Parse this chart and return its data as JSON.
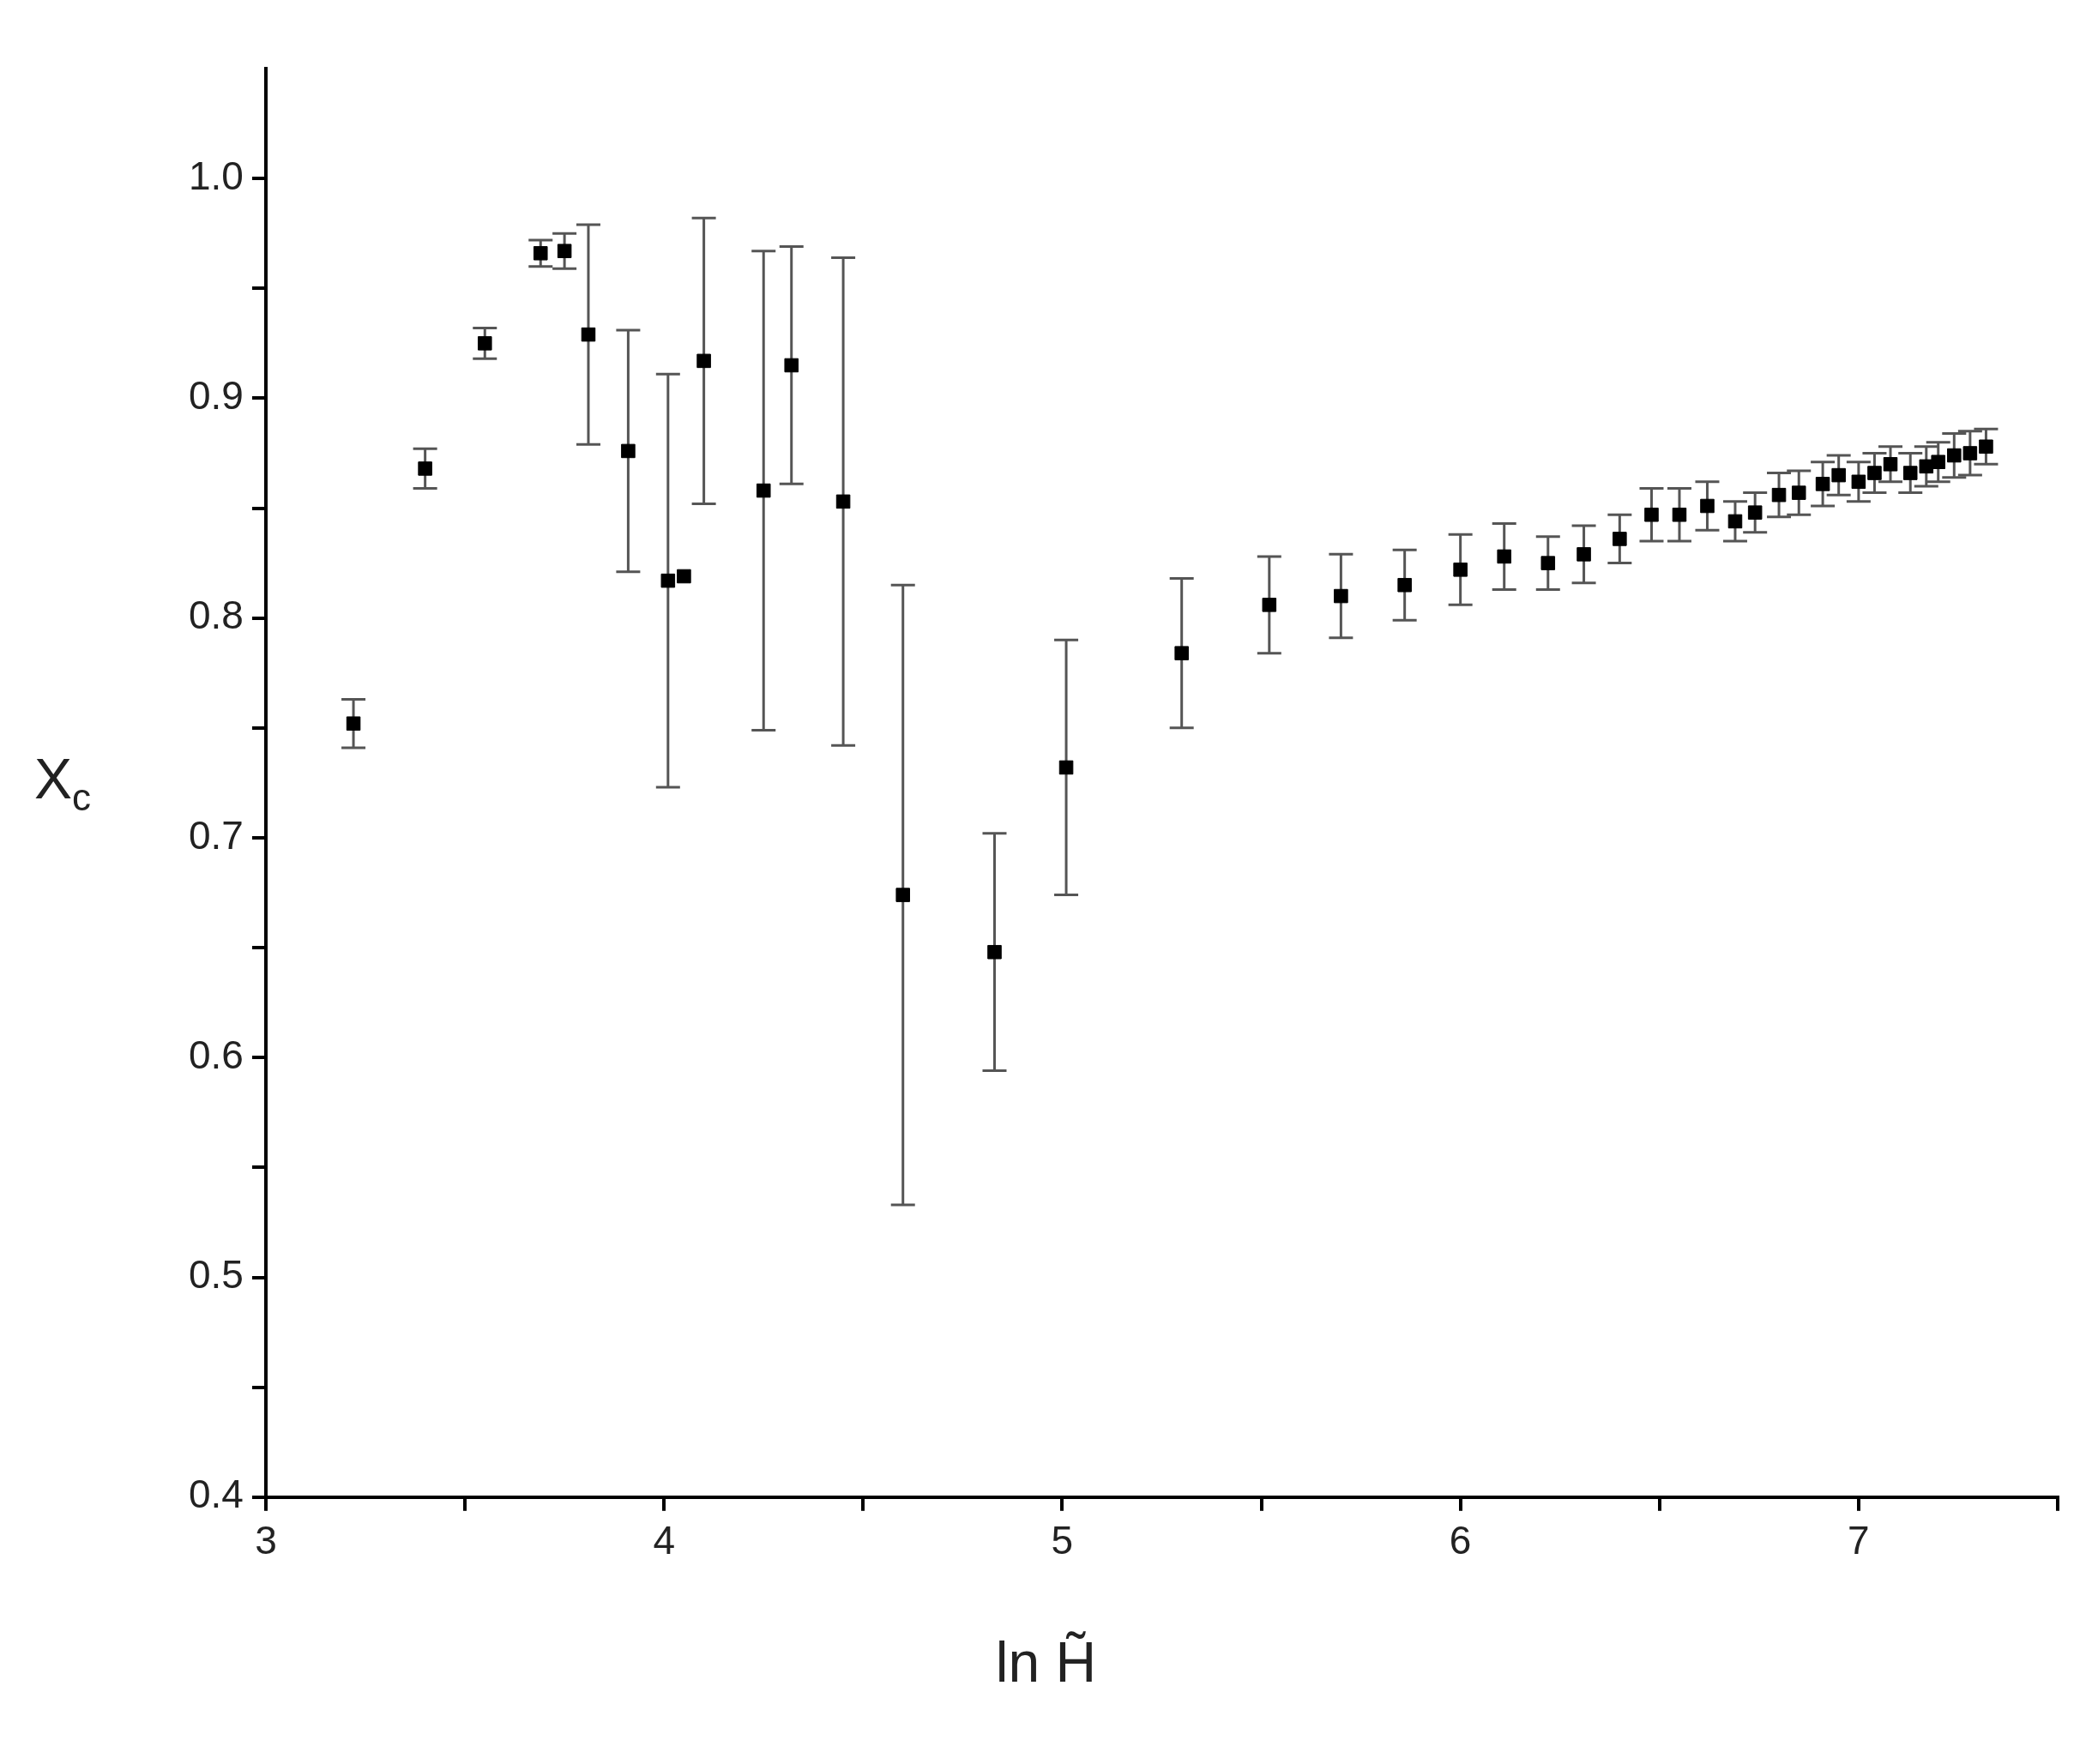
{
  "chart_data": {
    "type": "scatter",
    "xlabel": "ln H̃",
    "ylabel": "X$_{c}$",
    "x": [
      3.22,
      3.4,
      3.55,
      3.69,
      3.75,
      3.81,
      3.91,
      4.01,
      4.05,
      4.1,
      4.25,
      4.32,
      4.45,
      4.6,
      4.83,
      5.01,
      5.3,
      5.52,
      5.7,
      5.86,
      6.0,
      6.11,
      6.22,
      6.31,
      6.4,
      6.48,
      6.55,
      6.62,
      6.69,
      6.74,
      6.8,
      6.85,
      6.91,
      6.95,
      7.0,
      7.04,
      7.08,
      7.13,
      7.17,
      7.2,
      7.24,
      7.28,
      7.32
    ],
    "values": [
      0.752,
      0.868,
      0.925,
      0.966,
      0.967,
      0.929,
      0.876,
      0.817,
      0.819,
      0.917,
      0.858,
      0.915,
      0.853,
      0.674,
      0.648,
      0.732,
      0.784,
      0.806,
      0.81,
      0.815,
      0.822,
      0.828,
      0.825,
      0.829,
      0.836,
      0.847,
      0.847,
      0.851,
      0.844,
      0.848,
      0.856,
      0.857,
      0.861,
      0.865,
      0.862,
      0.866,
      0.87,
      0.866,
      0.869,
      0.871,
      0.874,
      0.875,
      0.878
    ],
    "errors": [
      0.011,
      0.009,
      0.007,
      0.006,
      0.008,
      0.05,
      0.055,
      0.094,
      null,
      0.065,
      0.109,
      0.054,
      0.111,
      0.141,
      0.054,
      0.058,
      0.034,
      0.022,
      0.019,
      0.016,
      0.016,
      0.015,
      0.012,
      0.013,
      0.011,
      0.012,
      0.012,
      0.011,
      0.009,
      0.009,
      0.01,
      0.01,
      0.01,
      0.009,
      0.009,
      0.009,
      0.008,
      0.009,
      0.009,
      0.009,
      0.01,
      0.01,
      0.008
    ],
    "color": "#000000",
    "marker": "square",
    "grid": false,
    "legend": false,
    "xlim": [
      3,
      7.5
    ],
    "xticks": [
      3,
      {
        "value": 3.5,
        "label": null
      },
      4,
      {
        "value": 4.5,
        "label": null
      },
      5,
      {
        "value": 5.5,
        "label": null
      },
      6,
      {
        "value": 6.5,
        "label": null
      },
      7,
      {
        "value": 7.5,
        "label": null
      }
    ],
    "ylim": [
      0.4,
      1.05
    ],
    "yticks": [
      {
        "value": 0.4,
        "label": "0.4"
      },
      {
        "value": 0.45,
        "label": null
      },
      {
        "value": 0.5,
        "label": "0.5"
      },
      {
        "value": 0.55,
        "label": null
      },
      {
        "value": 0.6,
        "label": "0.6"
      },
      {
        "value": 0.65,
        "label": null
      },
      {
        "value": 0.7,
        "label": "0.7"
      },
      {
        "value": 0.75,
        "label": null
      },
      {
        "value": 0.8,
        "label": "0.8"
      },
      {
        "value": 0.85,
        "label": null
      },
      {
        "value": 0.9,
        "label": "0.9"
      },
      {
        "value": 0.95,
        "label": null
      },
      {
        "value": 1.0,
        "label": "1.0"
      }
    ]
  }
}
